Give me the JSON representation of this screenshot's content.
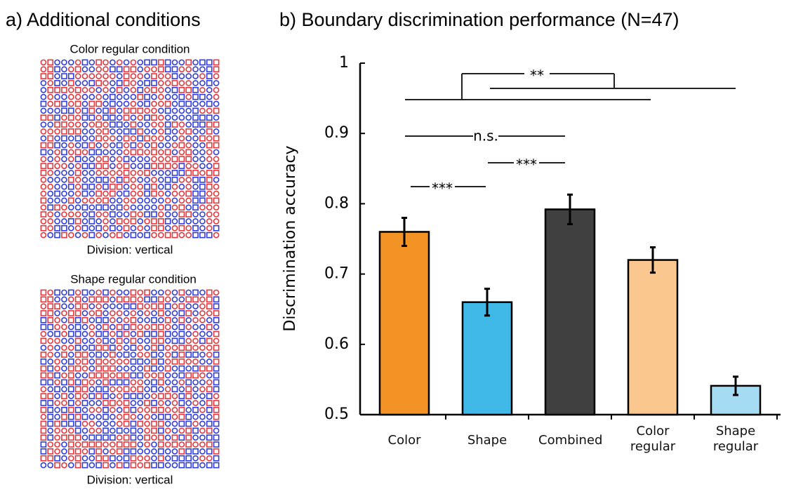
{
  "panel_a": {
    "title": "a) Additional conditions",
    "stimuli": [
      {
        "title": "Color regular condition",
        "caption": "Division: vertical"
      },
      {
        "title": "Shape regular condition",
        "caption": "Division: vertical"
      }
    ]
  },
  "chart_data": {
    "type": "bar",
    "title": "b) Boundary discrimination performance (N=47)",
    "y_label": "Discrimination accuracy",
    "categories": [
      "Color",
      "Shape",
      "Combined",
      "Color regular",
      "Shape regular"
    ],
    "values": [
      0.76,
      0.66,
      0.792,
      0.72,
      0.541
    ],
    "errors": [
      0.02,
      0.019,
      0.021,
      0.018,
      0.013
    ],
    "colors": [
      "#f39325",
      "#40b8e8",
      "#404040",
      "#fac78f",
      "#a5dcf3"
    ],
    "ylim": [
      0.5,
      1
    ],
    "yticks": [
      0.5,
      0.6,
      0.7,
      0.8,
      0.9,
      1
    ],
    "annotations": [
      "**",
      "n.s.",
      "***",
      "***"
    ]
  }
}
